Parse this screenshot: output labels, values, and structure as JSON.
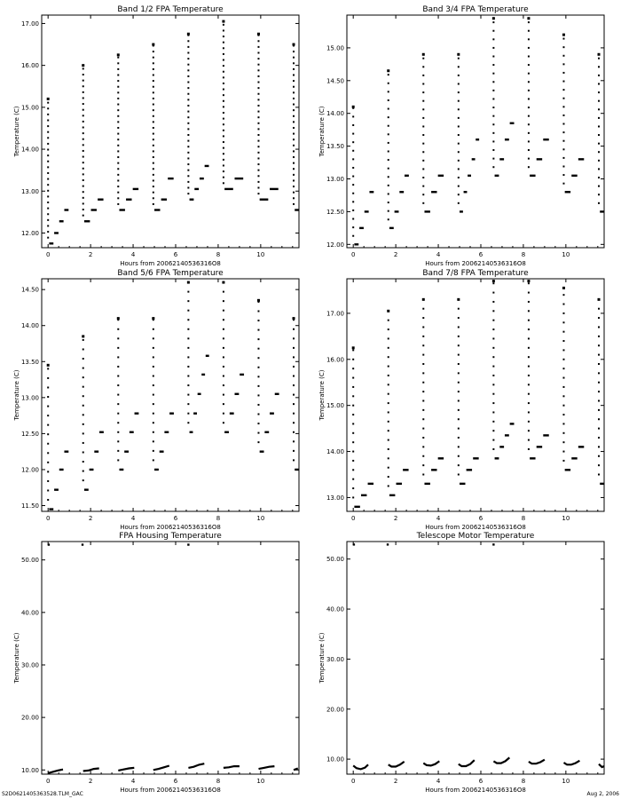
{
  "footer": {
    "left": "S2D0621405363528.TLM_GAC",
    "right": "Aug  2, 2006"
  },
  "chart_data": [
    {
      "type": "scatter",
      "title": "Band 1/2 FPA Temperature",
      "xlabel": "Hours from 20062140536316O8",
      "ylabel": "Temperature (C)",
      "xlim": [
        -0.3,
        11.8
      ],
      "ylim": [
        11.65,
        17.2
      ],
      "xticks": [
        0,
        2,
        4,
        6,
        8,
        10
      ],
      "xtick_labels": [
        "0",
        "2",
        "4",
        "6",
        "8",
        "10"
      ],
      "yticks": [
        12,
        13,
        14,
        15,
        16,
        17
      ],
      "ytick_labels": [
        "12.00",
        "13.00",
        "14.00",
        "15.00",
        "16.00",
        "17.00"
      ],
      "cycle_starts": [
        0.0,
        1.65,
        3.3,
        4.95,
        6.6,
        8.25,
        9.9,
        11.55
      ],
      "peaks": [
        15.2,
        16.0,
        16.25,
        16.5,
        16.75,
        17.05,
        16.75,
        16.5
      ],
      "step": 0.14,
      "troughs": [
        [
          11.75,
          12.0,
          12.28,
          12.55
        ],
        [
          12.28,
          12.55,
          12.8
        ],
        [
          12.55,
          12.8,
          13.05
        ],
        [
          12.55,
          12.8,
          13.3
        ],
        [
          12.8,
          13.05,
          13.3,
          13.6
        ],
        [
          13.05,
          13.3
        ],
        [
          12.8,
          13.05
        ],
        [
          12.55,
          12.8
        ]
      ]
    },
    {
      "type": "scatter",
      "title": "Band 3/4 FPA Temperature",
      "xlabel": "Hours from 20062140536316O8",
      "ylabel": "Temperature (C)",
      "xlim": [
        -0.3,
        11.8
      ],
      "ylim": [
        11.95,
        15.5
      ],
      "xticks": [
        0,
        2,
        4,
        6,
        8,
        10
      ],
      "xtick_labels": [
        "0",
        "2",
        "4",
        "6",
        "8",
        "10"
      ],
      "yticks": [
        12,
        12.5,
        13,
        13.5,
        14,
        14.5,
        15
      ],
      "ytick_labels": [
        "12.00",
        "12.50",
        "13.00",
        "13.50",
        "14.00",
        "14.50",
        "15.00"
      ],
      "cycle_starts": [
        0.0,
        1.65,
        3.3,
        4.95,
        6.6,
        8.25,
        9.9,
        11.55
      ],
      "peaks": [
        14.1,
        14.65,
        14.9,
        14.9,
        15.45,
        15.45,
        15.2,
        14.9
      ],
      "step": 0.13,
      "troughs": [
        [
          12.0,
          12.25,
          12.5,
          12.8
        ],
        [
          12.25,
          12.5,
          12.8,
          13.05
        ],
        [
          12.5,
          12.8,
          13.05
        ],
        [
          12.5,
          12.8,
          13.05,
          13.3,
          13.6
        ],
        [
          13.05,
          13.3,
          13.6,
          13.85
        ],
        [
          13.05,
          13.3,
          13.6
        ],
        [
          12.8,
          13.05,
          13.3
        ],
        [
          12.5,
          12.8
        ]
      ]
    },
    {
      "type": "scatter",
      "title": "Band 5/6 FPA Temperature",
      "xlabel": "Hours from 20062140536316O8",
      "ylabel": "Temperature (C)",
      "xlim": [
        -0.3,
        11.8
      ],
      "ylim": [
        11.42,
        14.65
      ],
      "xticks": [
        0,
        2,
        4,
        6,
        8,
        10
      ],
      "xtick_labels": [
        "0",
        "2",
        "4",
        "6",
        "8",
        "10"
      ],
      "yticks": [
        11.5,
        12,
        12.5,
        13,
        13.5,
        14,
        14.5
      ],
      "ytick_labels": [
        "11.50",
        "12.00",
        "12.50",
        "13.00",
        "13.50",
        "14.00",
        "14.50"
      ],
      "cycle_starts": [
        0.0,
        1.65,
        3.3,
        4.95,
        6.6,
        8.25,
        9.9,
        11.55
      ],
      "peaks": [
        13.45,
        13.85,
        14.1,
        14.1,
        14.6,
        14.6,
        14.35,
        14.1
      ],
      "step": 0.13,
      "troughs": [
        [
          11.45,
          11.72,
          12.0,
          12.25
        ],
        [
          11.72,
          12.0,
          12.25,
          12.52
        ],
        [
          12.0,
          12.25,
          12.52,
          12.78
        ],
        [
          12.0,
          12.25,
          12.52,
          12.78
        ],
        [
          12.52,
          12.78,
          13.05,
          13.32,
          13.58
        ],
        [
          12.52,
          12.78,
          13.05,
          13.32
        ],
        [
          12.25,
          12.52,
          12.78,
          13.05
        ],
        [
          12.0,
          12.25
        ]
      ]
    },
    {
      "type": "scatter",
      "title": "Band 7/8 FPA Temperature",
      "xlabel": "Hours from 20062140536316O8",
      "ylabel": "Temperature (C)",
      "xlim": [
        -0.3,
        11.8
      ],
      "ylim": [
        12.7,
        17.75
      ],
      "xticks": [
        0,
        2,
        4,
        6,
        8,
        10
      ],
      "xtick_labels": [
        "0",
        "2",
        "4",
        "6",
        "8",
        "10"
      ],
      "yticks": [
        13,
        14,
        15,
        16,
        17
      ],
      "ytick_labels": [
        "13.00",
        "14.00",
        "15.00",
        "16.00",
        "17.00"
      ],
      "cycle_starts": [
        0.0,
        1.65,
        3.3,
        4.95,
        6.6,
        8.25,
        9.9,
        11.55
      ],
      "peaks": [
        16.25,
        17.05,
        17.3,
        17.3,
        17.7,
        17.7,
        17.55,
        17.3
      ],
      "step": 0.2,
      "troughs": [
        [
          12.8,
          13.05,
          13.3
        ],
        [
          13.05,
          13.3,
          13.6
        ],
        [
          13.3,
          13.6,
          13.85
        ],
        [
          13.3,
          13.6,
          13.85
        ],
        [
          13.85,
          14.1,
          14.35,
          14.6
        ],
        [
          13.85,
          14.1,
          14.35
        ],
        [
          13.6,
          13.85,
          14.1
        ],
        [
          13.3,
          13.6
        ]
      ]
    },
    {
      "type": "line",
      "title": "FPA Housing Temperature",
      "xlabel": "Hours from 20062140536316O8",
      "ylabel": "Temperature (C)",
      "xlim": [
        -0.3,
        11.8
      ],
      "ylim": [
        9.2,
        53.5
      ],
      "xticks": [
        0,
        2,
        4,
        6,
        8,
        10
      ],
      "xtick_labels": [
        "0",
        "2",
        "4",
        "6",
        "8",
        "10"
      ],
      "yticks": [
        10,
        20,
        30,
        40,
        50
      ],
      "ytick_labels": [
        "10.00",
        "20.00",
        "30.00",
        "40.00",
        "50.00"
      ],
      "spikes": [
        [
          0.03,
          52.9
        ],
        [
          1.62,
          52.9
        ],
        [
          6.6,
          52.9
        ]
      ],
      "segments": [
        [
          [
            0.0,
            9.4
          ],
          [
            0.2,
            9.6
          ],
          [
            0.45,
            9.9
          ],
          [
            0.7,
            10.1
          ]
        ],
        [
          [
            1.65,
            9.8
          ],
          [
            1.9,
            9.9
          ],
          [
            2.15,
            10.2
          ],
          [
            2.4,
            10.3
          ]
        ],
        [
          [
            3.3,
            9.9
          ],
          [
            3.55,
            10.1
          ],
          [
            3.8,
            10.3
          ],
          [
            4.05,
            10.4
          ]
        ],
        [
          [
            4.95,
            10.0
          ],
          [
            5.2,
            10.2
          ],
          [
            5.45,
            10.5
          ],
          [
            5.7,
            10.8
          ]
        ],
        [
          [
            6.6,
            10.4
          ],
          [
            6.85,
            10.6
          ],
          [
            7.1,
            11.0
          ],
          [
            7.35,
            11.2
          ]
        ],
        [
          [
            8.25,
            10.4
          ],
          [
            8.5,
            10.5
          ],
          [
            8.75,
            10.7
          ],
          [
            9.0,
            10.7
          ]
        ],
        [
          [
            9.9,
            10.2
          ],
          [
            10.15,
            10.4
          ],
          [
            10.4,
            10.6
          ],
          [
            10.65,
            10.7
          ]
        ],
        [
          [
            11.55,
            10.0
          ],
          [
            11.75,
            10.3
          ]
        ]
      ]
    },
    {
      "type": "line",
      "title": "Telescope Motor Temperature",
      "xlabel": "Hours from 20062140536316O8",
      "ylabel": "Temperature (C)",
      "xlim": [
        -0.3,
        11.8
      ],
      "ylim": [
        7.0,
        53.5
      ],
      "xticks": [
        0,
        2,
        4,
        6,
        8,
        10
      ],
      "xtick_labels": [
        "0",
        "2",
        "4",
        "6",
        "8",
        "10"
      ],
      "yticks": [
        10,
        20,
        30,
        40,
        50
      ],
      "ytick_labels": [
        "10.00",
        "20.00",
        "30.00",
        "40.00",
        "50.00"
      ],
      "spikes": [
        [
          0.03,
          52.9
        ],
        [
          1.62,
          52.9
        ],
        [
          6.6,
          52.9
        ]
      ],
      "segments": [
        [
          [
            0.0,
            8.7
          ],
          [
            0.15,
            8.2
          ],
          [
            0.35,
            8.0
          ],
          [
            0.55,
            8.3
          ],
          [
            0.7,
            8.9
          ]
        ],
        [
          [
            1.65,
            8.9
          ],
          [
            1.8,
            8.5
          ],
          [
            2.0,
            8.5
          ],
          [
            2.2,
            8.9
          ],
          [
            2.4,
            9.5
          ]
        ],
        [
          [
            3.3,
            9.2
          ],
          [
            3.45,
            8.8
          ],
          [
            3.65,
            8.7
          ],
          [
            3.85,
            9.0
          ],
          [
            4.05,
            9.6
          ]
        ],
        [
          [
            4.95,
            9.0
          ],
          [
            5.1,
            8.6
          ],
          [
            5.3,
            8.6
          ],
          [
            5.5,
            9.0
          ],
          [
            5.7,
            9.8
          ]
        ],
        [
          [
            6.6,
            9.6
          ],
          [
            6.75,
            9.2
          ],
          [
            6.95,
            9.2
          ],
          [
            7.15,
            9.6
          ],
          [
            7.35,
            10.3
          ]
        ],
        [
          [
            8.25,
            9.5
          ],
          [
            8.4,
            9.1
          ],
          [
            8.6,
            9.1
          ],
          [
            8.8,
            9.4
          ],
          [
            9.0,
            9.9
          ]
        ],
        [
          [
            9.9,
            9.3
          ],
          [
            10.05,
            8.9
          ],
          [
            10.25,
            8.9
          ],
          [
            10.45,
            9.2
          ],
          [
            10.65,
            9.7
          ]
        ],
        [
          [
            11.55,
            9.0
          ],
          [
            11.7,
            8.4
          ],
          [
            11.8,
            8.6
          ]
        ]
      ]
    }
  ]
}
